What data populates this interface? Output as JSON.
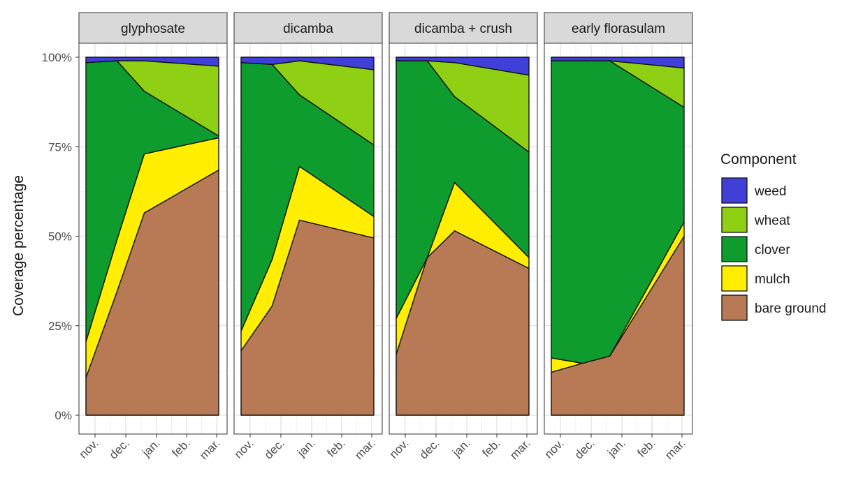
{
  "chart_data": {
    "type": "area",
    "stacked": true,
    "ylabel": "Coverage percentage",
    "xlabel": "",
    "ylim": [
      0,
      100
    ],
    "y_ticks": [
      0,
      25,
      50,
      75,
      100
    ],
    "y_tick_labels": [
      "0%",
      "25%",
      "50%",
      "75%",
      "100%"
    ],
    "x_ticks": [
      "nov.",
      "dec.",
      "jan.",
      "feb.",
      "mar."
    ],
    "grid": true,
    "legend": {
      "title": "Component",
      "position": "right",
      "entries": [
        "weed",
        "wheat",
        "clover",
        "mulch",
        "bare ground"
      ]
    },
    "colors": {
      "weed": "#4040d8",
      "wheat": "#8fd014",
      "clover": "#0f9c2e",
      "mulch": "#ffee00",
      "bare ground": "#b77a55"
    },
    "stack_order": [
      "bare ground",
      "mulch",
      "clover",
      "wheat",
      "weed"
    ],
    "x_values": [
      0,
      0.93,
      1.75,
      3.98
    ],
    "panels": [
      {
        "name": "glyphosate",
        "series": [
          {
            "name": "bare ground",
            "values": [
              10.5,
              34.5,
              56.5,
              68.5
            ]
          },
          {
            "name": "mulch",
            "values": [
              10.0,
              14.5,
              16.5,
              9.0
            ]
          },
          {
            "name": "clover",
            "values": [
              78.0,
              50.0,
              17.5,
              0.5
            ]
          },
          {
            "name": "wheat",
            "values": [
              0.0,
              0.0,
              8.5,
              19.5
            ]
          },
          {
            "name": "weed",
            "values": [
              1.5,
              1.0,
              1.0,
              2.5
            ]
          }
        ]
      },
      {
        "name": "dicamba",
        "series": [
          {
            "name": "bare ground",
            "values": [
              18.0,
              30.5,
              54.5,
              49.5
            ]
          },
          {
            "name": "mulch",
            "values": [
              5.5,
              13.0,
              15.0,
              6.0
            ]
          },
          {
            "name": "clover",
            "values": [
              75.0,
              54.5,
              20.0,
              20.0
            ]
          },
          {
            "name": "wheat",
            "values": [
              0.0,
              0.0,
              9.5,
              21.0
            ]
          },
          {
            "name": "weed",
            "values": [
              1.5,
              2.0,
              1.0,
              3.5
            ]
          }
        ]
      },
      {
        "name": "dicamba + crush",
        "series": [
          {
            "name": "bare ground",
            "values": [
              17.0,
              44.0,
              51.5,
              41.0
            ]
          },
          {
            "name": "mulch",
            "values": [
              10.0,
              0.0,
              13.5,
              3.0
            ]
          },
          {
            "name": "clover",
            "values": [
              72.0,
              55.0,
              24.0,
              29.5
            ]
          },
          {
            "name": "wheat",
            "values": [
              0.0,
              0.0,
              9.5,
              21.5
            ]
          },
          {
            "name": "weed",
            "values": [
              1.0,
              1.0,
              1.5,
              5.0
            ]
          }
        ]
      },
      {
        "name": "early florasulam",
        "series": [
          {
            "name": "bare ground",
            "values": [
              12.0,
              14.5,
              16.5,
              50.0
            ]
          },
          {
            "name": "mulch",
            "values": [
              4.0,
              0.0,
              0.0,
              4.0
            ]
          },
          {
            "name": "clover",
            "values": [
              83.0,
              84.5,
              82.5,
              32.0
            ]
          },
          {
            "name": "wheat",
            "values": [
              0.0,
              0.0,
              0.0,
              11.0
            ]
          },
          {
            "name": "weed",
            "values": [
              1.0,
              1.0,
              1.0,
              3.0
            ]
          }
        ]
      }
    ]
  }
}
